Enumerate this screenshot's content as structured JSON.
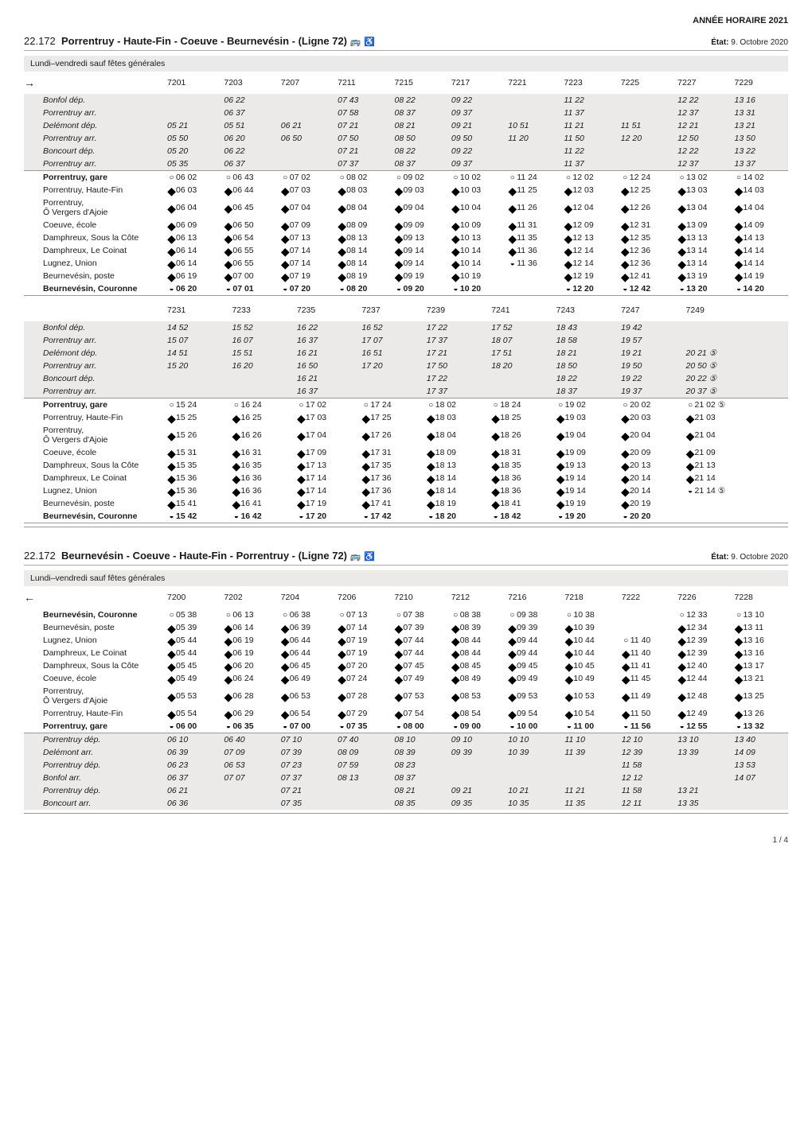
{
  "header_year": "ANNÉE HORAIRE 2021",
  "etat_label": "État:",
  "etat_value": "9. Octobre 2020",
  "banner": "Lundi–vendredi sauf fêtes générales",
  "arrow_fwd": "→",
  "arrow_rev": "←",
  "pagefoot": "1 / 4",
  "route_fwd": {
    "num": "22.172",
    "name": "Porrentruy - Haute-Fin - Coeuve - Beurnevésin - (Ligne 72)",
    "icon1": "🚌",
    "icon2": "♿",
    "headers_a": [
      "7201",
      "7203",
      "7207",
      "7211",
      "7215",
      "7217",
      "7221",
      "7223",
      "7225",
      "7227",
      "7229"
    ],
    "headers_b": [
      "7231",
      "7233",
      "7235",
      "7237",
      "7239",
      "7241",
      "7243",
      "7247",
      "7249",
      "",
      ""
    ],
    "stops": [
      "Bonfol dép.",
      "Porrentruy arr.",
      "Delémont dép.",
      "Porrentruy arr.",
      "Boncourt dép.",
      "Porrentruy arr.",
      "Porrentruy, gare",
      "Porrentruy, Haute-Fin",
      "Porrentruy, Ô Vergers d'Ajoie",
      "Coeuve, école",
      "Damphreux, Sous la Côte",
      "Damphreux, Le Coinat",
      "Lugnez, Union",
      "Beurnevésin, poste",
      "Beurnevésin, Couronne"
    ],
    "stop_labels": {
      "porrentruy_line1": "Porrentruy,",
      "porrentruy_line2": "Ô Vergers d'Ajoie"
    },
    "grid_a": {
      "r0": [
        "",
        "06 22",
        "",
        "07 43",
        "08 22",
        "09 22",
        "",
        "11 22",
        "",
        "12 22",
        "13 16"
      ],
      "r1": [
        "",
        "06 37",
        "",
        "07 58",
        "08 37",
        "09 37",
        "",
        "11 37",
        "",
        "12 37",
        "13 31"
      ],
      "r2": [
        "05 21",
        "05 51",
        "06 21",
        "07 21",
        "08 21",
        "09 21",
        "10 51",
        "11 21",
        "11 51",
        "12 21",
        "13 21"
      ],
      "r3": [
        "05 50",
        "06 20",
        "06 50",
        "07 50",
        "08 50",
        "09 50",
        "11 20",
        "11 50",
        "12 20",
        "12 50",
        "13 50"
      ],
      "r4": [
        "05 20",
        "06 22",
        "",
        "07 21",
        "08 22",
        "09 22",
        "",
        "11 22",
        "",
        "12 22",
        "13 22"
      ],
      "r5": [
        "05 35",
        "06 37",
        "",
        "07 37",
        "08 37",
        "09 37",
        "",
        "11 37",
        "",
        "12 37",
        "13 37"
      ],
      "r6": [
        "06 02",
        "06 43",
        "07 02",
        "08 02",
        "09 02",
        "10 02",
        "11 24",
        "12 02",
        "12 24",
        "13 02",
        "14 02"
      ],
      "r7": [
        "06 03",
        "06 44",
        "07 03",
        "08 03",
        "09 03",
        "10 03",
        "11 25",
        "12 03",
        "12 25",
        "13 03",
        "14 03"
      ],
      "r8": [
        "06 04",
        "06 45",
        "07 04",
        "08 04",
        "09 04",
        "10 04",
        "11 26",
        "12 04",
        "12 26",
        "13 04",
        "14 04"
      ],
      "r9": [
        "06 09",
        "06 50",
        "07 09",
        "08 09",
        "09 09",
        "10 09",
        "11 31",
        "12 09",
        "12 31",
        "13 09",
        "14 09"
      ],
      "r10": [
        "06 13",
        "06 54",
        "07 13",
        "08 13",
        "09 13",
        "10 13",
        "11 35",
        "12 13",
        "12 35",
        "13 13",
        "14 13"
      ],
      "r11": [
        "06 14",
        "06 55",
        "07 14",
        "08 14",
        "09 14",
        "10 14",
        "11 36",
        "12 14",
        "12 36",
        "13 14",
        "14 14"
      ],
      "r12": [
        "06 14",
        "06 55",
        "07 14",
        "08 14",
        "09 14",
        "10 14",
        "11 36",
        "12 14",
        "12 36",
        "13 14",
        "14 14"
      ],
      "r13": [
        "06 19",
        "07 00",
        "07 19",
        "08 19",
        "09 19",
        "10 19",
        "",
        "12 19",
        "12 41",
        "13 19",
        "14 19"
      ],
      "r14": [
        "06 20",
        "07 01",
        "07 20",
        "08 20",
        "09 20",
        "10 20",
        "",
        "12 20",
        "12 42",
        "13 20",
        "14 20"
      ]
    },
    "sym_a": {
      "r6": [
        "h",
        "h",
        "h",
        "h",
        "h",
        "h",
        "h",
        "h",
        "h",
        "h",
        "h"
      ],
      "r7": [
        "d",
        "d",
        "d",
        "d",
        "d",
        "d",
        "d",
        "d",
        "d",
        "d",
        "d"
      ],
      "r8": [
        "d",
        "d",
        "d",
        "d",
        "d",
        "d",
        "d",
        "d",
        "d",
        "d",
        "d"
      ],
      "r9": [
        "d",
        "d",
        "d",
        "d",
        "d",
        "d",
        "d",
        "d",
        "d",
        "d",
        "d"
      ],
      "r10": [
        "d",
        "d",
        "d",
        "d",
        "d",
        "d",
        "d",
        "d",
        "d",
        "d",
        "d"
      ],
      "r11": [
        "d",
        "d",
        "d",
        "d",
        "d",
        "d",
        "d",
        "d",
        "d",
        "d",
        "d"
      ],
      "r12": [
        "d",
        "d",
        "d",
        "d",
        "d",
        "d",
        "s",
        "d",
        "d",
        "d",
        "d"
      ],
      "r13": [
        "d",
        "d",
        "d",
        "d",
        "d",
        "d",
        "",
        "d",
        "d",
        "d",
        "d"
      ],
      "r14": [
        "s",
        "s",
        "s",
        "s",
        "s",
        "s",
        "",
        "s",
        "s",
        "s",
        "s"
      ]
    },
    "grid_b": {
      "r0": [
        "14 52",
        "15 52",
        "16 22",
        "16 52",
        "17 22",
        "17 52",
        "18 43",
        "19 42",
        "",
        "",
        ""
      ],
      "r1": [
        "15 07",
        "16 07",
        "16 37",
        "17 07",
        "17 37",
        "18 07",
        "18 58",
        "19 57",
        "",
        "",
        ""
      ],
      "r2": [
        "14 51",
        "15 51",
        "16 21",
        "16 51",
        "17 21",
        "17 51",
        "18 21",
        "19 21",
        "20 21 ⑤",
        "",
        ""
      ],
      "r3": [
        "15 20",
        "16 20",
        "16 50",
        "17 20",
        "17 50",
        "18 20",
        "18 50",
        "19 50",
        "20 50 ⑤",
        "",
        ""
      ],
      "r4": [
        "",
        "",
        "16 21",
        "",
        "17 22",
        "",
        "18 22",
        "19 22",
        "20 22 ⑤",
        "",
        ""
      ],
      "r5": [
        "",
        "",
        "16 37",
        "",
        "17 37",
        "",
        "18 37",
        "19 37",
        "20 37 ⑤",
        "",
        ""
      ],
      "r6": [
        "15 24",
        "16 24",
        "17 02",
        "17 24",
        "18 02",
        "18 24",
        "19 02",
        "20 02",
        "21 02 ⑤",
        "",
        ""
      ],
      "r7": [
        "15 25",
        "16 25",
        "17 03",
        "17 25",
        "18 03",
        "18 25",
        "19 03",
        "20 03",
        "21 03",
        "",
        ""
      ],
      "r8": [
        "15 26",
        "16 26",
        "17 04",
        "17 26",
        "18 04",
        "18 26",
        "19 04",
        "20 04",
        "21 04",
        "",
        ""
      ],
      "r9": [
        "15 31",
        "16 31",
        "17 09",
        "17 31",
        "18 09",
        "18 31",
        "19 09",
        "20 09",
        "21 09",
        "",
        ""
      ],
      "r10": [
        "15 35",
        "16 35",
        "17 13",
        "17 35",
        "18 13",
        "18 35",
        "19 13",
        "20 13",
        "21 13",
        "",
        ""
      ],
      "r11": [
        "15 36",
        "16 36",
        "17 14",
        "17 36",
        "18 14",
        "18 36",
        "19 14",
        "20 14",
        "21 14",
        "",
        ""
      ],
      "r12": [
        "15 36",
        "16 36",
        "17 14",
        "17 36",
        "18 14",
        "18 36",
        "19 14",
        "20 14",
        "21 14 ⑤",
        "",
        ""
      ],
      "r13": [
        "15 41",
        "16 41",
        "17 19",
        "17 41",
        "18 19",
        "18 41",
        "19 19",
        "20 19",
        "",
        "",
        ""
      ],
      "r14": [
        "15 42",
        "16 42",
        "17 20",
        "17 42",
        "18 20",
        "18 42",
        "19 20",
        "20 20",
        "",
        "",
        ""
      ]
    },
    "sym_b": {
      "r6": [
        "h",
        "h",
        "h",
        "h",
        "h",
        "h",
        "h",
        "h",
        "h",
        "",
        ""
      ],
      "r7": [
        "d",
        "d",
        "d",
        "d",
        "d",
        "d",
        "d",
        "d",
        "d",
        "",
        ""
      ],
      "r8": [
        "d",
        "d",
        "d",
        "d",
        "d",
        "d",
        "d",
        "d",
        "d",
        "",
        ""
      ],
      "r9": [
        "d",
        "d",
        "d",
        "d",
        "d",
        "d",
        "d",
        "d",
        "d",
        "",
        ""
      ],
      "r10": [
        "d",
        "d",
        "d",
        "d",
        "d",
        "d",
        "d",
        "d",
        "d",
        "",
        ""
      ],
      "r11": [
        "d",
        "d",
        "d",
        "d",
        "d",
        "d",
        "d",
        "d",
        "d",
        "",
        ""
      ],
      "r12": [
        "d",
        "d",
        "d",
        "d",
        "d",
        "d",
        "d",
        "d",
        "s",
        "",
        ""
      ],
      "r13": [
        "d",
        "d",
        "d",
        "d",
        "d",
        "d",
        "d",
        "d",
        "",
        "",
        ""
      ],
      "r14": [
        "s",
        "s",
        "s",
        "s",
        "s",
        "s",
        "s",
        "s",
        "",
        "",
        ""
      ]
    }
  },
  "route_rev": {
    "num": "22.172",
    "name": "Beurnevésin - Coeuve - Haute-Fin - Porrentruy - (Ligne 72)",
    "icon1": "🚌",
    "icon2": "♿",
    "headers": [
      "7200",
      "7202",
      "7204",
      "7206",
      "7210",
      "7212",
      "7216",
      "7218",
      "7222",
      "7226",
      "7228"
    ],
    "stops": [
      "Beurnevésin, Couronne",
      "Beurnevésin, poste",
      "Lugnez, Union",
      "Damphreux, Le Coinat",
      "Damphreux, Sous la Côte",
      "Coeuve, école",
      "Porrentruy, Ô Vergers d'Ajoie",
      "Porrentruy, Haute-Fin",
      "Porrentruy, gare",
      "Porrentruy dép.",
      "Delémont arr.",
      "Porrentruy dép.",
      "Bonfol arr.",
      "Porrentruy dép.",
      "Boncourt arr."
    ],
    "stop_labels": {
      "porrentruy_line1": "Porrentruy,",
      "porrentruy_line2": "Ô Vergers d'Ajoie"
    },
    "grid": {
      "r0": [
        "05 38",
        "06 13",
        "06 38",
        "07 13",
        "07 38",
        "08 38",
        "09 38",
        "10 38",
        "",
        "12 33",
        "13 10"
      ],
      "r1": [
        "05 39",
        "06 14",
        "06 39",
        "07 14",
        "07 39",
        "08 39",
        "09 39",
        "10 39",
        "",
        "12 34",
        "13 11"
      ],
      "r2": [
        "05 44",
        "06 19",
        "06 44",
        "07 19",
        "07 44",
        "08 44",
        "09 44",
        "10 44",
        "11 40",
        "12 39",
        "13 16"
      ],
      "r3": [
        "05 44",
        "06 19",
        "06 44",
        "07 19",
        "07 44",
        "08 44",
        "09 44",
        "10 44",
        "11 40",
        "12 39",
        "13 16"
      ],
      "r4": [
        "05 45",
        "06 20",
        "06 45",
        "07 20",
        "07 45",
        "08 45",
        "09 45",
        "10 45",
        "11 41",
        "12 40",
        "13 17"
      ],
      "r5": [
        "05 49",
        "06 24",
        "06 49",
        "07 24",
        "07 49",
        "08 49",
        "09 49",
        "10 49",
        "11 45",
        "12 44",
        "13 21"
      ],
      "r6": [
        "05 53",
        "06 28",
        "06 53",
        "07 28",
        "07 53",
        "08 53",
        "09 53",
        "10 53",
        "11 49",
        "12 48",
        "13 25"
      ],
      "r7": [
        "05 54",
        "06 29",
        "06 54",
        "07 29",
        "07 54",
        "08 54",
        "09 54",
        "10 54",
        "11 50",
        "12 49",
        "13 26"
      ],
      "r8": [
        "06 00",
        "06 35",
        "07 00",
        "07 35",
        "08 00",
        "09 00",
        "10 00",
        "11 00",
        "11 56",
        "12 55",
        "13 32"
      ],
      "r9": [
        "06 10",
        "06 40",
        "07 10",
        "07 40",
        "08 10",
        "09 10",
        "10 10",
        "11 10",
        "12 10",
        "13 10",
        "13 40"
      ],
      "r10": [
        "06 39",
        "07 09",
        "07 39",
        "08 09",
        "08 39",
        "09 39",
        "10 39",
        "11 39",
        "12 39",
        "13 39",
        "14 09"
      ],
      "r11": [
        "06 23",
        "06 53",
        "07 23",
        "07 59",
        "08 23",
        "",
        "",
        "",
        "11 58",
        "",
        "13 53"
      ],
      "r12": [
        "06 37",
        "07 07",
        "07 37",
        "08 13",
        "08 37",
        "",
        "",
        "",
        "12 12",
        "",
        "14 07"
      ],
      "r13": [
        "06 21",
        "",
        "07 21",
        "",
        "08 21",
        "09 21",
        "10 21",
        "11 21",
        "11 58",
        "13 21",
        ""
      ],
      "r14": [
        "06 36",
        "",
        "07 35",
        "",
        "08 35",
        "09 35",
        "10 35",
        "11 35",
        "12 11",
        "13 35",
        ""
      ]
    },
    "sym": {
      "r0": [
        "h",
        "h",
        "h",
        "h",
        "h",
        "h",
        "h",
        "h",
        "",
        "h",
        "h"
      ],
      "r1": [
        "d",
        "d",
        "d",
        "d",
        "d",
        "d",
        "d",
        "d",
        "",
        "d",
        "d"
      ],
      "r2": [
        "d",
        "d",
        "d",
        "d",
        "d",
        "d",
        "d",
        "d",
        "h",
        "d",
        "d"
      ],
      "r3": [
        "d",
        "d",
        "d",
        "d",
        "d",
        "d",
        "d",
        "d",
        "d",
        "d",
        "d"
      ],
      "r4": [
        "d",
        "d",
        "d",
        "d",
        "d",
        "d",
        "d",
        "d",
        "d",
        "d",
        "d"
      ],
      "r5": [
        "d",
        "d",
        "d",
        "d",
        "d",
        "d",
        "d",
        "d",
        "d",
        "d",
        "d"
      ],
      "r6": [
        "d",
        "d",
        "d",
        "d",
        "d",
        "d",
        "d",
        "d",
        "d",
        "d",
        "d"
      ],
      "r7": [
        "d",
        "d",
        "d",
        "d",
        "d",
        "d",
        "d",
        "d",
        "d",
        "d",
        "d"
      ],
      "r8": [
        "s",
        "s",
        "s",
        "s",
        "s",
        "s",
        "s",
        "s",
        "s",
        "s",
        "s"
      ]
    }
  }
}
